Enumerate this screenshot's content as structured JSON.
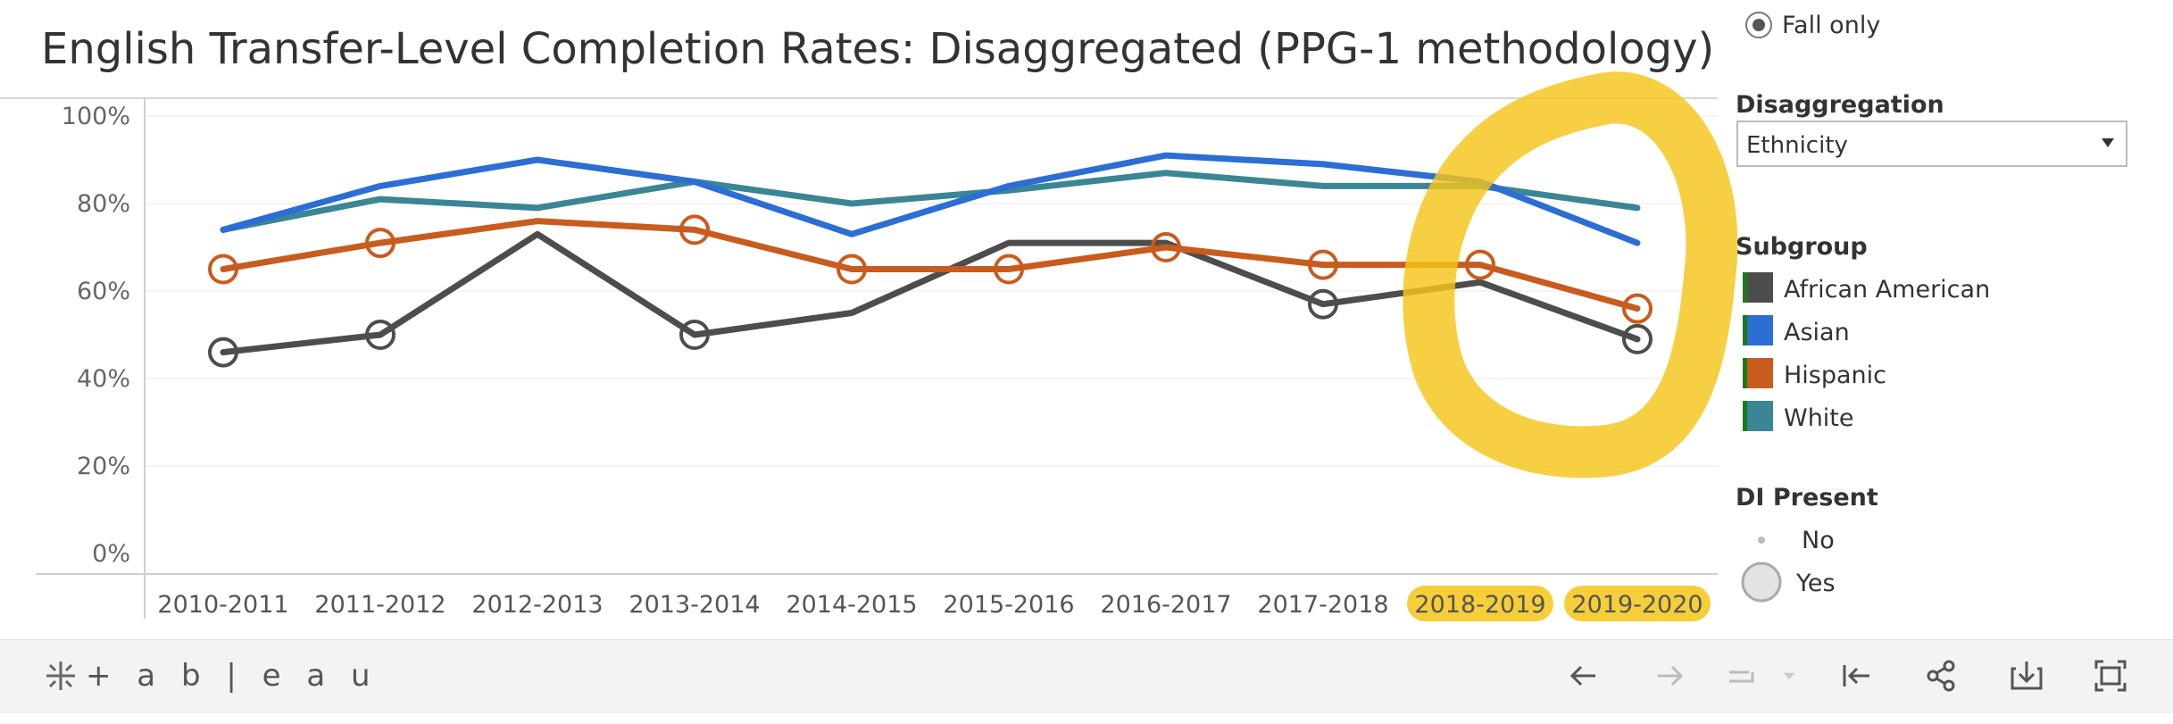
{
  "title": "English Transfer-Level Completion Rates: Disaggregated (PPG-1 methodology)",
  "filters": {
    "term_option_label": "Fall only",
    "disaggregation_label": "Disaggregation",
    "disaggregation_value": "Ethnicity"
  },
  "legend": {
    "subgroup_title": "Subgroup",
    "items": [
      {
        "label": "African American",
        "color": "#4d4d4d"
      },
      {
        "label": "Asian",
        "color": "#2c6ed3"
      },
      {
        "label": "Hispanic",
        "color": "#c85c1e"
      },
      {
        "label": "White",
        "color": "#3b8694"
      }
    ],
    "di_title": "DI Present",
    "di_items": [
      "No",
      "Yes"
    ]
  },
  "colors": {
    "highlight": "#f5c518",
    "grid": "#e8e8e8",
    "axis_text": "#666666",
    "swatch_accent": "#1a7a1a"
  },
  "chart_data": {
    "type": "line",
    "title": "English Transfer-Level Completion Rates: Disaggregated (PPG-1 methodology)",
    "xlabel": "",
    "ylabel": "",
    "x": [
      "2010-2011",
      "2011-2012",
      "2012-2013",
      "2013-2014",
      "2014-2015",
      "2015-2016",
      "2016-2017",
      "2017-2018",
      "2018-2019",
      "2019-2020"
    ],
    "highlighted_x": [
      "2018-2019",
      "2019-2020"
    ],
    "y_ticks": [
      0,
      20,
      40,
      60,
      80,
      100
    ],
    "y_tick_labels": [
      "0%",
      "20%",
      "40%",
      "60%",
      "80%",
      "100%"
    ],
    "ylim": [
      0,
      100
    ],
    "grid": true,
    "annotations": [
      "yellow circle around 2018-2019 to 2019-2020 data"
    ],
    "series": [
      {
        "name": "African American",
        "color": "#4d4d4d",
        "values": [
          46,
          50,
          73,
          50,
          55,
          71,
          71,
          57,
          62,
          49
        ],
        "di_present": [
          true,
          true,
          false,
          true,
          false,
          false,
          false,
          true,
          false,
          true
        ]
      },
      {
        "name": "Asian",
        "color": "#2c6ed3",
        "values": [
          74,
          84,
          90,
          85,
          73,
          84,
          91,
          89,
          85,
          71
        ],
        "di_present": [
          false,
          false,
          false,
          false,
          false,
          false,
          false,
          false,
          false,
          false
        ]
      },
      {
        "name": "Hispanic",
        "color": "#c85c1e",
        "values": [
          65,
          71,
          76,
          74,
          65,
          65,
          70,
          66,
          66,
          56
        ],
        "di_present": [
          true,
          true,
          false,
          true,
          true,
          true,
          true,
          true,
          true,
          true
        ]
      },
      {
        "name": "White",
        "color": "#3b8694",
        "values": [
          74,
          81,
          79,
          85,
          80,
          83,
          87,
          84,
          84,
          79
        ],
        "di_present": [
          false,
          false,
          false,
          false,
          false,
          false,
          false,
          false,
          false,
          false
        ]
      }
    ]
  },
  "toolbar": {
    "logo_text": "+ a b | e a u",
    "buttons": [
      {
        "name": "undo-button",
        "icon": "arrow-left-icon"
      },
      {
        "name": "redo-button",
        "icon": "arrow-right-icon"
      },
      {
        "name": "revert-button",
        "icon": "revert-icon"
      },
      {
        "name": "revert-all-button",
        "icon": "revert-all-icon"
      },
      {
        "name": "share-button",
        "icon": "share-icon"
      },
      {
        "name": "download-button",
        "icon": "download-icon"
      },
      {
        "name": "fullscreen-button",
        "icon": "fullscreen-icon"
      }
    ]
  }
}
